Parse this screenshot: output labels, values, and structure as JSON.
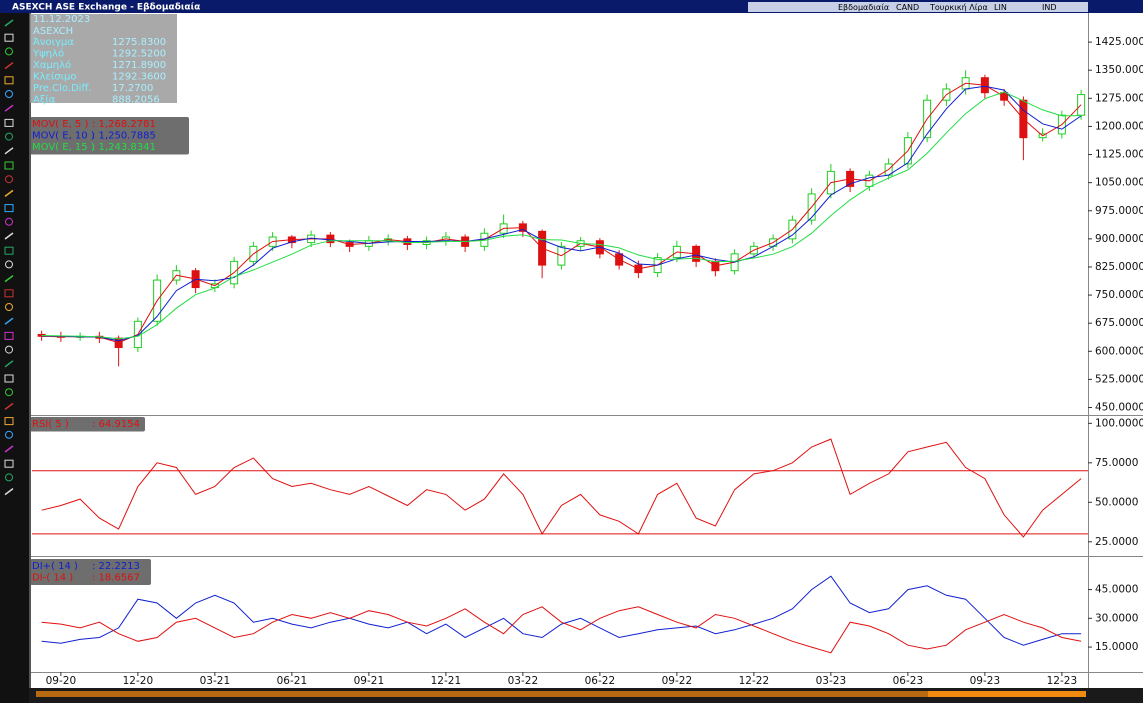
{
  "window": {
    "title": "ASEXCH ASE Exchange - Εβδομαδιαία",
    "toolbar": [
      "Εβδομαδιαία",
      "CAND",
      "Τουρκική Λίρα",
      "LIN",
      "IND"
    ],
    "info": {
      "date": "11.12.2023",
      "symbol": "ASEXCH",
      "rows": [
        [
          "Άνοιγμα",
          "1275.8300"
        ],
        [
          "Υψηλό",
          "1292.5200"
        ],
        [
          "Χαμηλό",
          "1271.8900"
        ],
        [
          "Κλείσιμο",
          "1292.3600"
        ],
        [
          "Pre.Clo.Diff.",
          "17.2700"
        ],
        [
          "Αξία",
          "888.2056"
        ]
      ]
    }
  },
  "chart_data": [
    {
      "type": "candlestick",
      "categories": [
        null,
        "09-20",
        null,
        null,
        null,
        "12-20",
        null,
        null,
        null,
        "03-21",
        null,
        null,
        null,
        "06-21",
        null,
        null,
        null,
        "09-21",
        null,
        null,
        null,
        "12-21",
        null,
        null,
        null,
        "03-22",
        null,
        null,
        null,
        "06-22",
        null,
        null,
        null,
        "09-22",
        null,
        null,
        null,
        "12-22",
        null,
        null,
        null,
        "03-23",
        null,
        null,
        null,
        "06-23",
        null,
        null,
        null,
        "09-23",
        null,
        null,
        null,
        "12-23",
        null
      ],
      "open": [
        645,
        640,
        638,
        640,
        635,
        610,
        680,
        790,
        815,
        770,
        780,
        840,
        880,
        905,
        890,
        910,
        890,
        880,
        895,
        900,
        885,
        895,
        905,
        880,
        915,
        940,
        920,
        830,
        880,
        895,
        860,
        830,
        810,
        850,
        880,
        840,
        815,
        860,
        880,
        900,
        950,
        1020,
        1080,
        1040,
        1070,
        1100,
        1170,
        1270,
        1300,
        1330,
        1290,
        1270,
        1170,
        1180,
        1230
      ],
      "high": [
        655,
        652,
        650,
        652,
        642,
        690,
        805,
        830,
        822,
        792,
        852,
        892,
        918,
        910,
        922,
        918,
        898,
        908,
        912,
        908,
        906,
        918,
        912,
        928,
        965,
        948,
        925,
        892,
        905,
        902,
        870,
        842,
        862,
        895,
        885,
        848,
        872,
        892,
        912,
        962,
        1035,
        1100,
        1088,
        1082,
        1115,
        1185,
        1285,
        1315,
        1350,
        1338,
        1300,
        1280,
        1195,
        1242,
        1298
      ],
      "low": [
        628,
        625,
        628,
        622,
        560,
        598,
        668,
        778,
        755,
        758,
        768,
        828,
        868,
        875,
        878,
        878,
        865,
        868,
        882,
        870,
        872,
        882,
        865,
        868,
        902,
        905,
        795,
        818,
        868,
        848,
        818,
        795,
        798,
        838,
        825,
        800,
        805,
        848,
        868,
        888,
        938,
        1008,
        1025,
        1028,
        1058,
        1088,
        1158,
        1255,
        1285,
        1275,
        1255,
        1110,
        1160,
        1168,
        1218
      ],
      "close": [
        640,
        638,
        640,
        635,
        610,
        680,
        790,
        815,
        770,
        780,
        840,
        880,
        905,
        890,
        910,
        890,
        880,
        895,
        900,
        885,
        895,
        905,
        880,
        915,
        940,
        920,
        830,
        880,
        895,
        860,
        830,
        810,
        850,
        880,
        840,
        815,
        860,
        880,
        900,
        950,
        1020,
        1080,
        1040,
        1070,
        1100,
        1170,
        1270,
        1300,
        1330,
        1290,
        1270,
        1170,
        1180,
        1230,
        1285
      ],
      "up_color": "#22cc22",
      "down_color": "#dd1111",
      "series": [
        {
          "name": "MOV( E, 5 )",
          "last_label": ": 1,268.2781",
          "color": "#e01010",
          "values": [
            640,
            639,
            639,
            638,
            623,
            645,
            735,
            803,
            793,
            775,
            810,
            860,
            893,
            898,
            900,
            900,
            885,
            888,
            898,
            893,
            890,
            900,
            893,
            898,
            928,
            930,
            875,
            855,
            888,
            878,
            845,
            820,
            830,
            865,
            860,
            828,
            838,
            870,
            890,
            925,
            985,
            1050,
            1060,
            1055,
            1085,
            1135,
            1220,
            1285,
            1315,
            1310,
            1280,
            1220,
            1175,
            1205,
            1258
          ]
        },
        {
          "name": "MOV( E, 10 )",
          "last_label": ": 1,250.7885",
          "color": "#1020d0",
          "values": [
            641,
            640,
            639,
            638,
            628,
            642,
            693,
            762,
            792,
            788,
            797,
            830,
            875,
            892,
            902,
            897,
            893,
            888,
            892,
            893,
            893,
            895,
            893,
            900,
            912,
            925,
            897,
            877,
            868,
            878,
            862,
            833,
            830,
            847,
            857,
            845,
            838,
            852,
            880,
            910,
            957,
            1017,
            1047,
            1063,
            1070,
            1103,
            1180,
            1247,
            1300,
            1307,
            1297,
            1243,
            1207,
            1193,
            1228
          ]
        },
        {
          "name": "MOV( E, 15 )",
          "last_label": ": 1,243.8341",
          "color": "#22dd44",
          "values": [
            642,
            641,
            640,
            639,
            633,
            640,
            671,
            715,
            751,
            769,
            799,
            817,
            838,
            859,
            883,
            895,
            895,
            895,
            895,
            890,
            891,
            893,
            893,
            896,
            907,
            911,
            898,
            897,
            888,
            885,
            876,
            857,
            845,
            846,
            848,
            839,
            840,
            849,
            859,
            879,
            915,
            962,
            1004,
            1038,
            1062,
            1084,
            1128,
            1183,
            1234,
            1274,
            1292,
            1268,
            1244,
            1228,
            1229
          ]
        }
      ],
      "ylim": [
        430,
        1500
      ],
      "yticks": [
        {
          "value": 450,
          "label": "450.0000"
        },
        {
          "value": 525,
          "label": "525.0000"
        },
        {
          "value": 600,
          "label": "600.0000"
        },
        {
          "value": 675,
          "label": "675.0000"
        },
        {
          "value": 750,
          "label": "750.0000"
        },
        {
          "value": 825,
          "label": "825.0000"
        },
        {
          "value": 900,
          "label": "900.0000"
        },
        {
          "value": 975,
          "label": "975.0000"
        },
        {
          "value": 1050,
          "label": "1050.000"
        },
        {
          "value": 1125,
          "label": "1125.000"
        },
        {
          "value": 1200,
          "label": "1200.000"
        },
        {
          "value": 1275,
          "label": "1275.000"
        },
        {
          "value": 1350,
          "label": "1350.000"
        },
        {
          "value": 1425,
          "label": "1425.000"
        }
      ]
    },
    {
      "type": "line",
      "series": [
        {
          "name": "RSI( 5 )",
          "last_label": ": 64.9154",
          "color": "#e01010",
          "values": [
            45,
            48,
            52,
            40,
            33,
            60,
            75,
            72,
            55,
            60,
            72,
            78,
            65,
            60,
            62,
            58,
            55,
            60,
            54,
            48,
            58,
            55,
            45,
            52,
            68,
            55,
            30,
            48,
            55,
            42,
            38,
            30,
            55,
            62,
            40,
            35,
            58,
            68,
            70,
            75,
            85,
            90,
            55,
            62,
            68,
            82,
            85,
            88,
            72,
            65,
            42,
            28,
            45,
            55,
            65
          ]
        }
      ],
      "levels": [
        70,
        30
      ],
      "level_color": "#e01010",
      "ylim": [
        16,
        104
      ],
      "yticks": [
        {
          "value": 25,
          "label": "25.0000"
        },
        {
          "value": 50,
          "label": "50.0000"
        },
        {
          "value": 75,
          "label": "75.0000"
        },
        {
          "value": 100,
          "label": "100.0000"
        }
      ]
    },
    {
      "type": "line",
      "series": [
        {
          "name": "DI+( 14 )",
          "last_label": ": 22.2213",
          "color": "#1020d0",
          "values": [
            18,
            17,
            19,
            20,
            25,
            40,
            38,
            30,
            38,
            42,
            38,
            28,
            30,
            27,
            25,
            28,
            30,
            27,
            25,
            28,
            22,
            27,
            20,
            25,
            30,
            22,
            20,
            27,
            30,
            25,
            20,
            22,
            24,
            25,
            26,
            22,
            24,
            27,
            30,
            35,
            45,
            52,
            38,
            33,
            35,
            45,
            47,
            42,
            40,
            30,
            20,
            16,
            19,
            22,
            22
          ]
        },
        {
          "name": "DI-( 14 )",
          "last_label": ": 18.6567",
          "color": "#e01010",
          "values": [
            28,
            27,
            25,
            28,
            22,
            18,
            20,
            28,
            30,
            25,
            20,
            22,
            28,
            32,
            30,
            33,
            30,
            34,
            32,
            28,
            26,
            30,
            35,
            28,
            22,
            32,
            36,
            28,
            24,
            30,
            34,
            36,
            32,
            28,
            25,
            32,
            30,
            26,
            22,
            18,
            15,
            12,
            28,
            26,
            22,
            16,
            14,
            16,
            24,
            28,
            32,
            28,
            25,
            20,
            18
          ]
        }
      ],
      "ylim": [
        2,
        62
      ],
      "yticks": [
        {
          "value": 15,
          "label": "15.0000"
        },
        {
          "value": 30,
          "label": "30.0000"
        },
        {
          "value": 45,
          "label": "45.0000"
        }
      ]
    }
  ]
}
